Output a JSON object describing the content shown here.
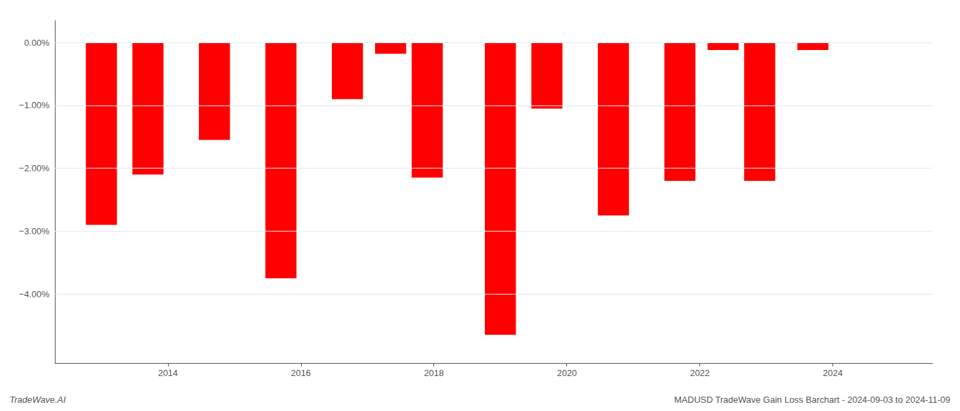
{
  "chart_data": {
    "type": "bar",
    "x": [
      2013.0,
      2013.7,
      2014.7,
      2015.7,
      2016.7,
      2017.35,
      2017.9,
      2019.0,
      2019.7,
      2020.7,
      2021.7,
      2022.35,
      2022.9,
      2023.7
    ],
    "values": [
      -2.9,
      -2.1,
      -1.55,
      -3.75,
      -0.9,
      -0.18,
      -2.15,
      -4.65,
      -1.05,
      -2.75,
      -2.2,
      -0.12,
      -2.2,
      -0.12
    ],
    "color": "#ff0000",
    "xlim": [
      2012.3,
      2025.5
    ],
    "xticks": [
      2014,
      2016,
      2018,
      2020,
      2022,
      2024
    ],
    "ylim": [
      -5.1,
      0.35
    ],
    "yticks": [
      {
        "value": 0.0,
        "label": "0.00%"
      },
      {
        "value": -1.0,
        "label": "−1.00%"
      },
      {
        "value": -2.0,
        "label": "−2.00%"
      },
      {
        "value": -3.0,
        "label": "−3.00%"
      },
      {
        "value": -4.0,
        "label": "−4.00%"
      }
    ],
    "grid": true,
    "annotations": [
      "TradeWave.AI",
      "MADUSD TradeWave Gain Loss Barchart - 2024-09-03 to 2024-11-09"
    ]
  }
}
